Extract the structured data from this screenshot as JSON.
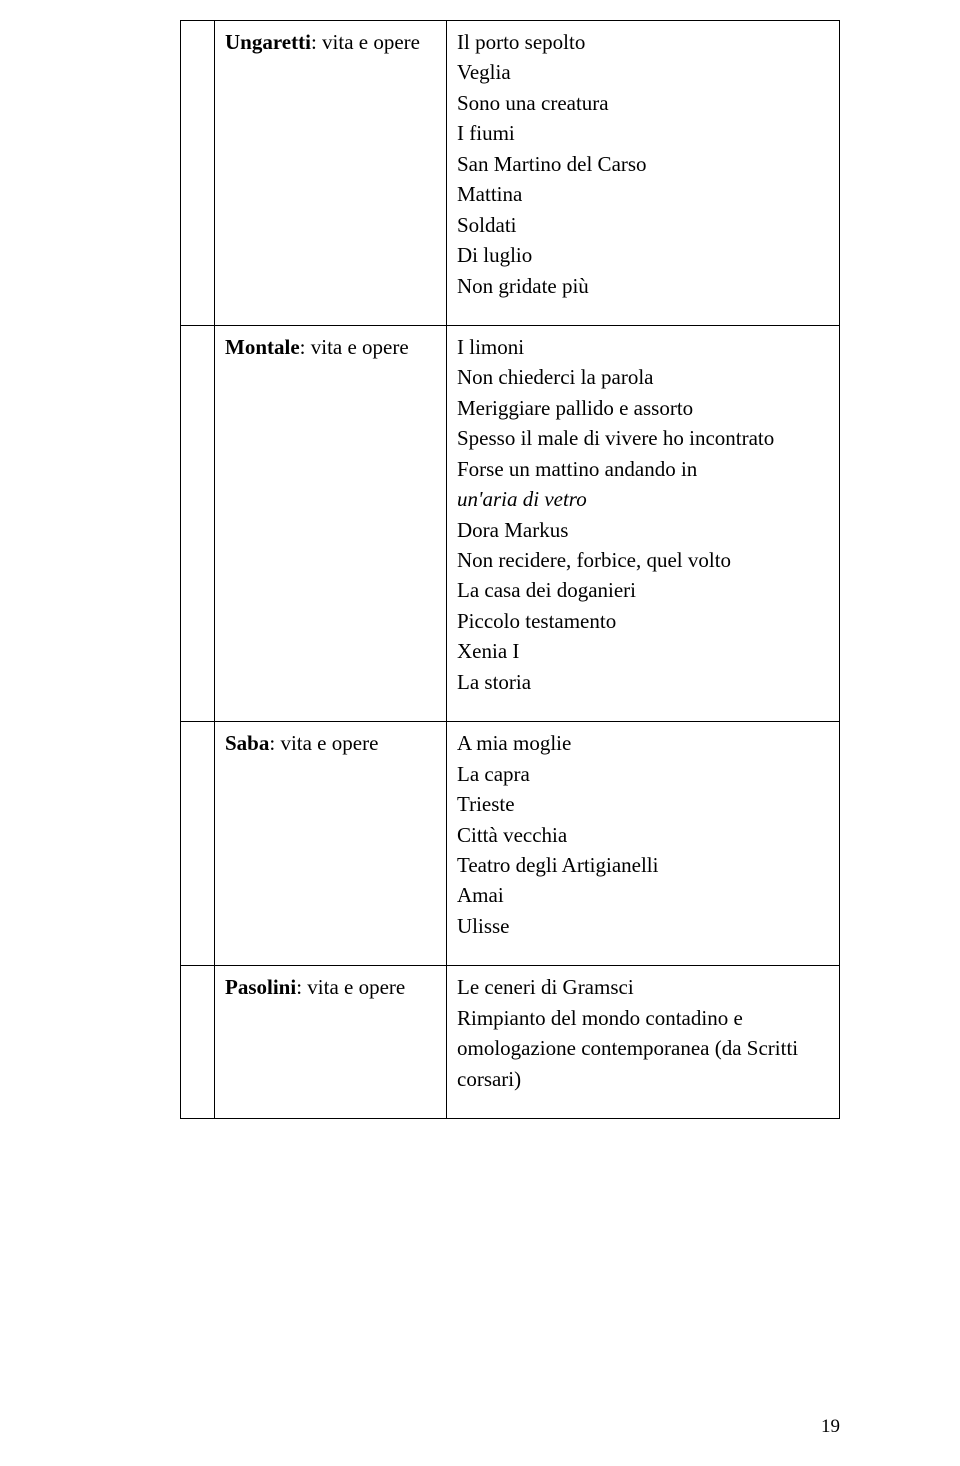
{
  "colors": {
    "background": "#ffffff",
    "text": "#000000",
    "border": "#000000"
  },
  "typography": {
    "font_family": "Times New Roman",
    "body_fontsize": 21,
    "pagenum_fontsize": 19
  },
  "rows": {
    "ungaretti": {
      "label_bold": "Ungaretti",
      "label_rest": ": vita e opere",
      "lines": [
        "Il porto sepolto",
        "Veglia",
        "Sono una creatura",
        "I fiumi",
        "San Martino del Carso",
        "Mattina",
        "Soldati",
        "Di luglio",
        "Non gridate più"
      ]
    },
    "montale": {
      "label_bold": "Montale",
      "label_rest": ": vita e opere",
      "pre_lines": [
        "I limoni",
        "Non chiederci la parola",
        "Meriggiare pallido e assorto",
        "Spesso il male di vivere ho incontrato",
        "Forse un mattino andando in"
      ],
      "italic_line": "un'aria di vetro",
      "post_lines": [
        "Dora Markus",
        "Non recidere, forbice, quel volto",
        "La casa dei doganieri",
        "Piccolo testamento",
        "Xenia I",
        "La storia"
      ]
    },
    "saba": {
      "label_bold": "Saba",
      "label_rest": ": vita e opere",
      "lines": [
        "A mia moglie",
        "La capra",
        "Trieste",
        "Città vecchia",
        "Teatro degli Artigianelli",
        "Amai",
        "Ulisse"
      ]
    },
    "pasolini": {
      "label_bold": "Pasolini",
      "label_rest": ": vita e opere",
      "lines": [
        "Le ceneri di Gramsci",
        "Rimpianto del mondo contadino e omologazione contemporanea (da Scritti corsari)"
      ]
    }
  },
  "page_number": "19"
}
